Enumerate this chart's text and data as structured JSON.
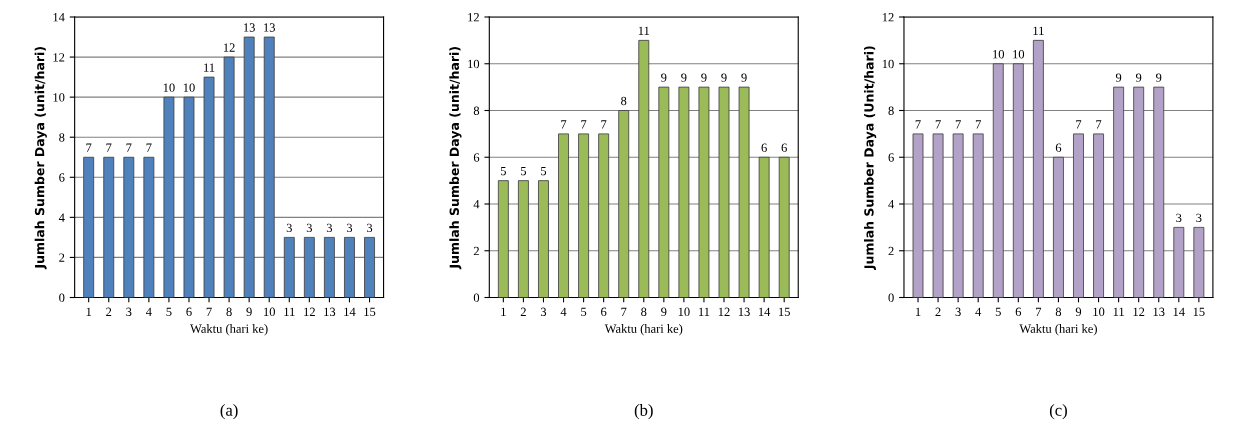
{
  "chart_data": [
    {
      "type": "bar",
      "xlabel": "Waktu (hari ke)",
      "ylabel": "Jumlah Sumber Daya (unit/hari)",
      "categories": [
        "1",
        "2",
        "3",
        "4",
        "5",
        "6",
        "7",
        "8",
        "9",
        "10",
        "11",
        "12",
        "13",
        "14",
        "15"
      ],
      "values": [
        7,
        7,
        7,
        7,
        10,
        10,
        11,
        12,
        13,
        13,
        3,
        3,
        3,
        3,
        3
      ],
      "color": "#4f81bd",
      "ylim": [
        0,
        14
      ],
      "yticks": [
        0,
        2,
        4,
        6,
        8,
        10,
        12,
        14
      ],
      "grid": "y",
      "data_labels": true,
      "annotations": [
        "(a)"
      ]
    },
    {
      "type": "bar",
      "xlabel": "Waktu (hari ke)",
      "ylabel": "Jumlah Sumber Daya (unit/hari)",
      "categories": [
        "1",
        "2",
        "3",
        "4",
        "5",
        "6",
        "7",
        "8",
        "9",
        "10",
        "11",
        "12",
        "13",
        "14",
        "15"
      ],
      "values": [
        5,
        5,
        5,
        7,
        7,
        7,
        8,
        11,
        9,
        9,
        9,
        9,
        9,
        6,
        6
      ],
      "color": "#9bbb59",
      "ylim": [
        0,
        12
      ],
      "yticks": [
        0,
        2,
        4,
        6,
        8,
        10,
        12
      ],
      "grid": "y",
      "data_labels": true,
      "annotations": [
        "(b)"
      ]
    },
    {
      "type": "bar",
      "xlabel": "Waktu (hari ke)",
      "ylabel": "Jumlah Sumber Daya (Unit/hari)",
      "categories": [
        "1",
        "2",
        "3",
        "4",
        "5",
        "6",
        "7",
        "8",
        "9",
        "10",
        "11",
        "12",
        "13",
        "14",
        "15"
      ],
      "values": [
        7,
        7,
        7,
        7,
        10,
        10,
        11,
        6,
        7,
        7,
        9,
        9,
        9,
        3,
        3
      ],
      "color": "#b3a2c7",
      "ylim": [
        0,
        12
      ],
      "yticks": [
        0,
        2,
        4,
        6,
        8,
        10,
        12
      ],
      "grid": "y",
      "data_labels": true,
      "annotations": [
        "(c)"
      ]
    }
  ]
}
